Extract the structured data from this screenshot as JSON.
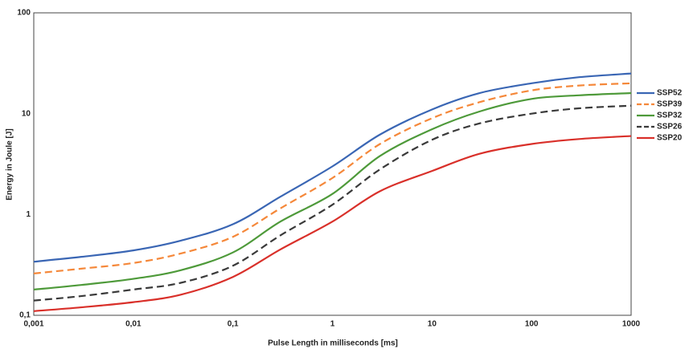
{
  "chart_data": {
    "type": "line",
    "x_label": "Pulse Length in milliseconds [ms]",
    "y_label": "Energy in Joule [J]",
    "log_x": true,
    "log_y": true,
    "grid": true,
    "legend": "right",
    "x": [
      0.001,
      0.003,
      0.01,
      0.03,
      0.1,
      0.3,
      1,
      3,
      10,
      30,
      100,
      300,
      1000
    ],
    "series": [
      {
        "name": "SSP52",
        "color": "#3a66b4",
        "dash": false,
        "values": [
          0.34,
          0.38,
          0.44,
          0.55,
          0.8,
          1.5,
          3.0,
          6.2,
          11,
          16,
          20,
          23,
          25
        ]
      },
      {
        "name": "SSP39",
        "color": "#f5883a",
        "dash": true,
        "values": [
          0.26,
          0.29,
          0.33,
          0.41,
          0.6,
          1.15,
          2.3,
          5,
          9,
          13,
          17,
          19,
          20
        ]
      },
      {
        "name": "SSP32",
        "color": "#4e9a3a",
        "dash": false,
        "values": [
          0.18,
          0.2,
          0.23,
          0.28,
          0.42,
          0.85,
          1.6,
          3.8,
          7,
          10.5,
          14,
          15.2,
          16
        ]
      },
      {
        "name": "SSP26",
        "color": "#3a3a3a",
        "dash": true,
        "values": [
          0.14,
          0.155,
          0.18,
          0.21,
          0.31,
          0.62,
          1.25,
          2.8,
          5.5,
          8,
          10,
          11.3,
          12
        ]
      },
      {
        "name": "SSP20",
        "color": "#d9302a",
        "dash": false,
        "values": [
          0.11,
          0.12,
          0.135,
          0.16,
          0.24,
          0.45,
          0.85,
          1.7,
          2.7,
          4,
          5,
          5.6,
          6
        ]
      }
    ],
    "xlim": [
      0.001,
      1000
    ],
    "xticks": [
      {
        "value": 0.001,
        "label": "0,001"
      },
      {
        "value": 0.01,
        "label": "0,01"
      },
      {
        "value": 0.1,
        "label": "0,1"
      },
      1,
      10,
      100,
      1000
    ],
    "ylim": [
      0.1,
      100
    ],
    "yticks": [
      {
        "value": 0.1,
        "label": "0,1"
      },
      1,
      10,
      100
    ],
    "yminorticks": [
      0.2,
      0.3,
      0.4,
      0.5,
      0.6,
      0.7,
      0.8,
      0.9,
      2,
      3,
      4,
      5,
      6,
      7,
      8,
      9,
      20,
      30,
      40,
      50,
      60,
      70,
      80,
      90
    ]
  }
}
